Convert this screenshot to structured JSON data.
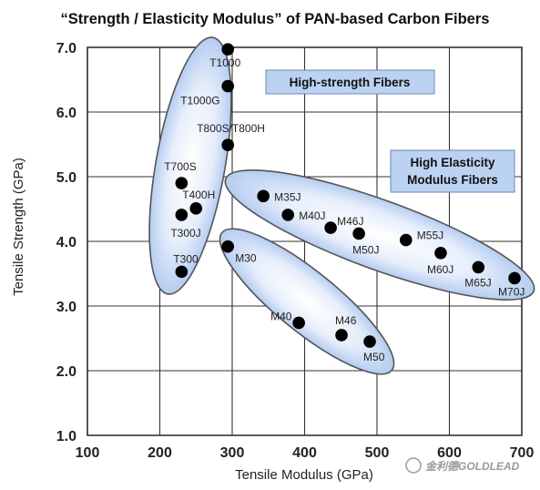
{
  "chart_data": {
    "type": "scatter",
    "title": "“Strength / Elasticity Modulus” of PAN-based Carbon Fibers",
    "xlabel": "Tensile Modulus (GPa)",
    "ylabel": "Tensile Strength (GPa)",
    "xlim": [
      100,
      700
    ],
    "ylim": [
      1.0,
      7.0
    ],
    "xticks": [
      "100",
      "200",
      "300",
      "400",
      "500",
      "600",
      "700"
    ],
    "yticks": [
      "1.0",
      "2.0",
      "3.0",
      "4.0",
      "5.0",
      "6.0",
      "7.0"
    ],
    "grid": true,
    "points": [
      {
        "label": "T1000",
        "x": 294,
        "y": 6.97
      },
      {
        "label": "T1000G",
        "x": 294,
        "y": 6.4
      },
      {
        "label": "T800S/T800H",
        "x": 294,
        "y": 5.49
      },
      {
        "label": "T700S",
        "x": 230,
        "y": 4.9
      },
      {
        "label": "T400H",
        "x": 250,
        "y": 4.51
      },
      {
        "label": "T300J",
        "x": 230,
        "y": 4.41
      },
      {
        "label": "T300",
        "x": 230,
        "y": 3.53
      },
      {
        "label": "M30",
        "x": 294,
        "y": 3.92
      },
      {
        "label": "M35J",
        "x": 343,
        "y": 4.7
      },
      {
        "label": "M40J",
        "x": 377,
        "y": 4.41
      },
      {
        "label": "M46J",
        "x": 436,
        "y": 4.21
      },
      {
        "label": "M50J",
        "x": 475,
        "y": 4.12
      },
      {
        "label": "M55J",
        "x": 540,
        "y": 4.02
      },
      {
        "label": "M60J",
        "x": 588,
        "y": 3.82
      },
      {
        "label": "M65J",
        "x": 640,
        "y": 3.6
      },
      {
        "label": "M70J",
        "x": 690,
        "y": 3.43
      },
      {
        "label": "M40",
        "x": 392,
        "y": 2.74
      },
      {
        "label": "M46",
        "x": 451,
        "y": 2.55
      },
      {
        "label": "M50",
        "x": 490,
        "y": 2.45
      }
    ],
    "groups": [
      {
        "name": "High-strength Fibers"
      },
      {
        "name": "High Elasticity Modulus Fibers"
      }
    ],
    "point_color": "#000000",
    "group_fill": "#a9c4ee",
    "group_border": "#555555",
    "label_box_fill": "#bcd2f2"
  },
  "watermark": "金利德GOLDLEAD"
}
